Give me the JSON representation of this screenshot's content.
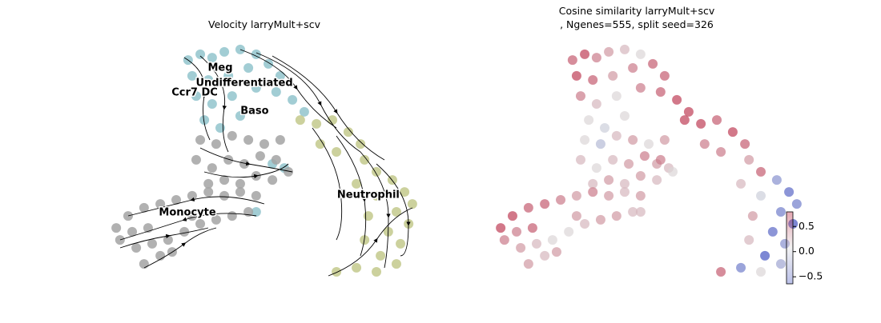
{
  "chart_data": [
    {
      "type": "scatter",
      "title": "Velocity larryMult+scv",
      "xlim": [
        0,
        100
      ],
      "ylim": [
        0,
        100
      ],
      "series": [
        {
          "color": "#92c4cc",
          "x": [
            25.6,
            29.5,
            33.3,
            37.2,
            42.3,
            47.4,
            26.9,
            32.1,
            38.5,
            44.9,
            51.3,
            55.1,
            28.2,
            33.3,
            39.7,
            47.4,
            53.8,
            59,
            30.8,
            35.9,
            42.3,
            62.8,
            52.6,
            56.4,
            47.4
          ],
          "y": [
            93.3,
            95.7,
            94.3,
            96.7,
            97.7,
            95.7,
            86.7,
            85,
            86.7,
            90,
            91.7,
            86.7,
            78.3,
            75,
            78.3,
            81.7,
            80,
            76.7,
            68.3,
            65,
            70,
            71.7,
            50,
            48.3,
            30
          ]
        },
        {
          "color": "#c3c98c",
          "x": [
            61.5,
            66.7,
            71.8,
            76.9,
            80.8,
            67.9,
            73.1,
            82.1,
            85.9,
            91,
            94.9,
            97.4,
            79.5,
            85.9,
            92.3,
            96.2,
            83.3,
            89.7,
            93.6,
            82.1,
            87.2,
            92.3,
            73.1,
            79.5,
            85.9
          ],
          "y": [
            68.3,
            66.7,
            68.3,
            63.3,
            58.3,
            58.3,
            55,
            51.7,
            46.7,
            43.3,
            38.3,
            33.3,
            41.7,
            36.7,
            30,
            25,
            28.3,
            21.7,
            16.7,
            18.3,
            11.7,
            8.3,
            5,
            6.7,
            5
          ]
        },
        {
          "color": "#a3a3a3",
          "x": [
            29.5,
            34.6,
            39.7,
            44.9,
            50,
            55.1,
            28.2,
            33.3,
            38.5,
            43.6,
            48.7,
            53.8,
            32.1,
            37.2,
            42.3,
            47.4,
            52.6,
            57.7,
            47.4,
            42.3,
            37.2,
            32.1,
            26.9,
            21.8,
            16.7,
            11.5,
            6.4,
            2.6,
            3.8,
            9,
            14.1,
            19.2,
            24.4,
            29.5,
            34.6,
            39.7,
            44.9,
            16.7,
            11.5,
            20.5,
            26.9,
            7.7,
            12.8
          ],
          "y": [
            60,
            58.3,
            61.7,
            60,
            58.3,
            60,
            51.7,
            48.3,
            51.7,
            50,
            53.3,
            51.7,
            41.7,
            43.3,
            41.7,
            45,
            43.3,
            46.7,
            36.7,
            38.3,
            36.7,
            38.3,
            36.7,
            35,
            33.3,
            31.7,
            28.3,
            23.3,
            18.3,
            15,
            16.7,
            18.3,
            21.7,
            25,
            26.7,
            28.3,
            30,
            11.7,
            8.3,
            13.3,
            28.3,
            21.7,
            23.3
          ]
        }
      ],
      "annotations": [
        {
          "text": "Meg",
          "x": 35.9,
          "y": 90
        },
        {
          "text": "Undifferentiated",
          "x": 43.6,
          "y": 83.7
        },
        {
          "text": "Ccr7 DC",
          "x": 27.7,
          "y": 79.7
        },
        {
          "text": "Baso",
          "x": 46.9,
          "y": 72
        },
        {
          "text": "Neutrophil",
          "x": 83.3,
          "y": 37
        },
        {
          "text": "Monocyte",
          "x": 25.4,
          "y": 29.7
        }
      ]
    },
    {
      "type": "colorscatter",
      "title": [
        "Cosine similarity larryMult+scv",
        ", Ngenes=555, split seed=326"
      ],
      "xlim": [
        0,
        100
      ],
      "ylim": [
        0,
        100
      ],
      "x": [
        25.6,
        29.5,
        33.3,
        37.2,
        42.3,
        47.4,
        26.9,
        32.1,
        38.5,
        44.9,
        51.3,
        55.1,
        28.2,
        33.3,
        39.7,
        47.4,
        53.8,
        59,
        30.8,
        35.9,
        42.3,
        62.8,
        52.6,
        56.4,
        47.4,
        61.5,
        66.7,
        71.8,
        76.9,
        80.8,
        67.9,
        73.1,
        82.1,
        85.9,
        91,
        94.9,
        97.4,
        79.5,
        85.9,
        92.3,
        96.2,
        83.3,
        89.7,
        93.6,
        82.1,
        87.2,
        92.3,
        73.1,
        79.5,
        85.9,
        29.5,
        34.6,
        39.7,
        44.9,
        50,
        55.1,
        28.2,
        33.3,
        38.5,
        43.6,
        48.7,
        53.8,
        32.1,
        37.2,
        42.3,
        47.4,
        52.6,
        57.7,
        47.4,
        42.3,
        37.2,
        32.1,
        26.9,
        21.8,
        16.7,
        11.5,
        6.4,
        2.6,
        3.8,
        9,
        14.1,
        19.2,
        24.4,
        29.5,
        34.6,
        39.7,
        44.9,
        16.7,
        11.5,
        20.5,
        26.9,
        7.7,
        12.8
      ],
      "y": [
        93.3,
        95.7,
        94.3,
        96.7,
        97.7,
        95.7,
        86.7,
        85,
        86.7,
        90,
        91.7,
        86.7,
        78.3,
        75,
        78.3,
        81.7,
        80,
        76.7,
        68.3,
        65,
        70,
        71.7,
        50,
        48.3,
        30,
        68.3,
        66.7,
        68.3,
        63.3,
        58.3,
        58.3,
        55,
        51.7,
        46.7,
        43.3,
        38.3,
        33.3,
        41.7,
        36.7,
        30,
        25,
        28.3,
        21.7,
        16.7,
        18.3,
        11.7,
        8.3,
        5,
        6.7,
        5,
        60,
        58.3,
        61.7,
        60,
        58.3,
        60,
        51.7,
        48.3,
        51.7,
        50,
        53.3,
        51.7,
        41.7,
        43.3,
        41.7,
        45,
        43.3,
        46.7,
        36.7,
        38.3,
        36.7,
        38.3,
        36.7,
        35,
        33.3,
        31.7,
        28.3,
        23.3,
        18.3,
        15,
        16.7,
        18.3,
        21.7,
        25,
        26.7,
        28.3,
        30,
        11.7,
        8.3,
        13.3,
        28.3,
        21.7,
        23.3
      ],
      "values": [
        0.5,
        0.6,
        0.4,
        0.3,
        0.2,
        0.1,
        0.6,
        0.5,
        0.3,
        0.4,
        0.5,
        0.5,
        0.4,
        0.2,
        0.1,
        0.4,
        0.5,
        0.6,
        0.1,
        0.0,
        0.1,
        0.6,
        0.3,
        0.2,
        0.2,
        0.6,
        0.6,
        0.5,
        0.6,
        0.5,
        0.4,
        0.4,
        0.3,
        0.5,
        -0.3,
        -0.5,
        -0.4,
        0.2,
        0.0,
        -0.4,
        -0.6,
        0.3,
        -0.5,
        -0.3,
        0.2,
        -0.6,
        -0.2,
        0.5,
        -0.4,
        0.1,
        0.1,
        -0.1,
        0.2,
        0.3,
        0.1,
        0.3,
        0.2,
        0.1,
        0.2,
        0.3,
        0.4,
        0.4,
        0.2,
        0.3,
        0.2,
        0.3,
        0.2,
        0.1,
        0.3,
        0.2,
        0.3,
        0.4,
        0.3,
        0.4,
        0.5,
        0.5,
        0.6,
        0.6,
        0.4,
        0.3,
        0.2,
        0.1,
        0.1,
        0.2,
        0.3,
        0.3,
        0.2,
        0.2,
        0.3,
        0.3,
        0.3,
        0.4,
        0.5
      ],
      "clim": [
        -0.64,
        0.79
      ],
      "colormap": [
        "#3b4cc0",
        "#dddddd",
        "#b40426"
      ],
      "alpha": 0.35,
      "cticks": [
        0.5,
        {
          "value": 0,
          "label": "0.0"
        },
        {
          "value": -0.5,
          "label": "−0.5"
        }
      ]
    }
  ]
}
